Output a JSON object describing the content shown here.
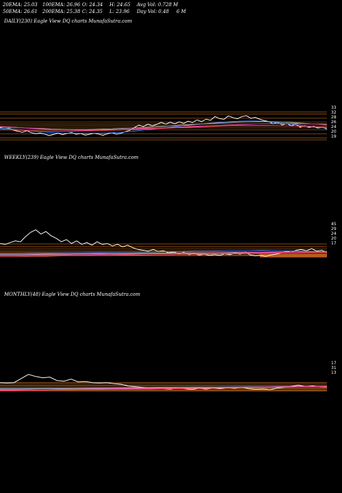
{
  "header": {
    "row1": [
      "20EMA: 25.03",
      "100EMA: 26.96",
      "O: 24.34",
      "H: 24.65",
      "Avg Vol: 0.728 M"
    ],
    "row2": [
      "50EMA: 26.61",
      "200EMA: 25.38",
      "C: 24.35",
      "L: 23.96",
      "Day Vol: 0.48",
      "6  M"
    ]
  },
  "colors": {
    "background": "#000000",
    "price": "#ffffff",
    "ema_fast": "#3d7bff",
    "ema_mid": "#c0c0c0",
    "ema_slow": "#ff3ec8",
    "ema_long": "#ff5555",
    "level_line": "#b5651d",
    "volume_band": "#c8641e"
  },
  "chart_data": [
    {
      "id": "daily",
      "type": "line",
      "title": "DAILY(230) Eagle  View  DQ charts MunafaSutra.com",
      "ylim": [
        17,
        36
      ],
      "price_labels": [
        "33",
        "32",
        "28",
        "26",
        "24",
        "20",
        "19"
      ],
      "levels": [
        33,
        32,
        30,
        28,
        27,
        26,
        25,
        24,
        22,
        20,
        19
      ],
      "series": [
        {
          "key": "price",
          "values": [
            25.2,
            24.6,
            24.9,
            23.8,
            23.3,
            22.8,
            23.6,
            22.6,
            22.1,
            22.4,
            21.9,
            21.1,
            21.8,
            22.4,
            21.6,
            22.3,
            22.7,
            21.8,
            22.2,
            21.4,
            21.8,
            22.4,
            21.9,
            21.3,
            22.1,
            22.6,
            21.9,
            22.3,
            23.1,
            23.8,
            25.2,
            26.4,
            25.7,
            26.9,
            26.1,
            26.8,
            27.8,
            26.9,
            27.9,
            27.1,
            28.1,
            27.3,
            28.4,
            27.7,
            29.1,
            28.2,
            29.4,
            28.9,
            30.8,
            29.7,
            29.3,
            31.1,
            30.2,
            29.6,
            30.7,
            31.2,
            29.9,
            30.3,
            29.4,
            28.7,
            28.2,
            27.1,
            27.9,
            26.5,
            27.3,
            26.1,
            26.8,
            25.4,
            26.2,
            25.3,
            25.8,
            24.9,
            25.4,
            24.35
          ]
        },
        {
          "key": "ema_fast",
          "values": [
            24.8,
            24.6,
            24.3,
            24.0,
            23.6,
            23.2,
            22.9,
            22.7,
            22.5,
            22.4,
            22.3,
            22.3,
            22.3,
            22.4,
            22.4,
            22.5,
            22.7,
            22.9,
            23.2,
            23.6,
            24.0,
            24.4,
            24.8,
            25.2,
            25.6,
            26.0,
            26.4,
            26.8,
            27.1,
            27.4,
            27.7,
            28.0,
            28.2,
            28.4,
            28.5,
            28.5,
            28.4,
            28.1,
            27.7,
            27.3,
            26.9,
            26.5,
            26.0,
            25.6,
            25.2,
            25.03
          ]
        },
        {
          "key": "ema_mid",
          "values": [
            25.5,
            25.4,
            25.2,
            25.0,
            24.8,
            24.6,
            24.4,
            24.3,
            24.2,
            24.2,
            24.2,
            24.3,
            24.4,
            24.5,
            24.7,
            24.9,
            25.1,
            25.3,
            25.6,
            25.8,
            26.1,
            26.4,
            26.6,
            26.9,
            27.1,
            27.4,
            27.6,
            27.8,
            28.0,
            28.1,
            28.2,
            28.2,
            28.1,
            27.9,
            27.7,
            27.4,
            27.1,
            26.9,
            26.61
          ]
        },
        {
          "key": "ema_slow",
          "values": [
            25.6,
            25.4,
            25.1,
            24.8,
            24.5,
            24.3,
            24.1,
            24.0,
            23.9,
            23.9,
            24.0,
            24.1,
            24.2,
            24.4,
            24.6,
            24.8,
            25.0,
            25.2,
            25.4,
            25.6,
            25.8,
            26.0,
            26.2,
            26.4,
            26.6,
            26.8,
            27.0,
            27.1,
            27.2,
            27.2,
            27.2,
            27.1,
            27.0,
            26.96
          ]
        },
        {
          "key": "ema_long",
          "values": [
            24.2,
            24.0,
            23.8,
            23.6,
            23.5,
            23.4,
            23.4,
            23.4,
            23.5,
            23.6,
            23.7,
            23.9,
            24.0,
            24.2,
            24.4,
            24.6,
            24.8,
            25.0,
            25.2,
            25.4,
            25.6,
            25.8,
            26.0,
            26.1,
            26.2,
            26.2,
            26.2,
            26.1,
            26.0,
            25.9,
            25.7,
            25.5,
            25.38
          ]
        }
      ]
    },
    {
      "id": "weekly",
      "type": "line",
      "title": "WEEKLY(239) Eagle  View  DQ charts MunafaSutra.com",
      "ylim": [
        10,
        95
      ],
      "price_labels": [
        "45",
        "29",
        "24",
        "20",
        "17"
      ],
      "levels": [
        45,
        38,
        33,
        29,
        26,
        24,
        22,
        20,
        18,
        17
      ],
      "series": [
        {
          "key": "price",
          "values": [
            46,
            44,
            48,
            52,
            50,
            62,
            72,
            78,
            68,
            74,
            64,
            58,
            50,
            55,
            46,
            52,
            44,
            48,
            42,
            50,
            44,
            46,
            40,
            44,
            38,
            42,
            36,
            32,
            30,
            28,
            32,
            27,
            29,
            24,
            26,
            22,
            25,
            20,
            22,
            19,
            21,
            18,
            20,
            18,
            22,
            20,
            24,
            21,
            26,
            19,
            17,
            18,
            16,
            19,
            21,
            24,
            28,
            26,
            30,
            32,
            29,
            34,
            28,
            30,
            24.35
          ]
        },
        {
          "key": "ema_fast",
          "values": [
            22,
            22,
            23,
            23,
            24,
            24,
            25,
            25,
            26,
            26,
            27,
            27,
            28,
            28,
            29,
            29,
            30,
            29,
            28,
            27,
            25.03
          ]
        },
        {
          "key": "ema_mid",
          "values": [
            20,
            20,
            21,
            21,
            22,
            22,
            23,
            23,
            24,
            24,
            25,
            25,
            26,
            26,
            26.61
          ]
        },
        {
          "key": "ema_slow",
          "values": [
            18,
            18,
            19,
            19,
            20,
            20,
            21,
            21,
            22,
            22,
            23,
            23,
            24,
            24,
            25,
            25,
            26,
            26,
            26.96
          ]
        },
        {
          "key": "ema_long",
          "values": [
            15,
            15,
            16,
            16,
            17,
            17,
            18,
            18,
            19,
            19,
            20,
            20,
            21,
            21,
            22,
            22,
            23,
            23,
            24,
            24,
            25,
            25.38
          ]
        }
      ]
    },
    {
      "id": "monthly",
      "type": "line",
      "title": "MONTHLY(48) Eagle  View  DQ charts MunafaSutra.com",
      "ylim": [
        5,
        100
      ],
      "price_labels": [
        "17",
        "31",
        "13"
      ],
      "levels": [
        38,
        35,
        31,
        28,
        25,
        22,
        20,
        17,
        15,
        13
      ],
      "series": [
        {
          "key": "price",
          "values": [
            38,
            37,
            38,
            50,
            62,
            56,
            52,
            54,
            44,
            42,
            48,
            40,
            41,
            38,
            37,
            38,
            35,
            33,
            28,
            26,
            24,
            22,
            23,
            20,
            19,
            22,
            20,
            18,
            21,
            19,
            22,
            20,
            23,
            21,
            24,
            20,
            18,
            19,
            17,
            22,
            24,
            27,
            30,
            26,
            28,
            25,
            24.35
          ]
        },
        {
          "key": "ema_fast",
          "values": [
            20,
            20,
            21,
            21,
            22,
            22,
            23,
            23,
            24,
            24,
            25,
            25,
            26,
            26,
            25.03
          ]
        },
        {
          "key": "ema_mid",
          "values": [
            19,
            19,
            20,
            20,
            21,
            21,
            22,
            22,
            23,
            23,
            24,
            24,
            25,
            25,
            26,
            26,
            26.61
          ]
        },
        {
          "key": "ema_slow",
          "values": [
            16,
            16,
            17,
            17,
            18,
            18,
            19,
            19,
            20,
            20,
            21,
            21,
            22,
            22,
            23,
            23,
            24,
            24,
            25,
            25,
            26,
            26,
            26.96
          ]
        },
        {
          "key": "ema_long",
          "values": [
            14,
            14,
            15,
            15,
            16,
            16,
            17,
            17,
            18,
            18,
            19,
            19,
            20,
            20,
            21,
            21,
            22,
            22,
            23,
            23,
            24,
            24,
            25,
            25,
            25.38
          ]
        }
      ]
    }
  ]
}
